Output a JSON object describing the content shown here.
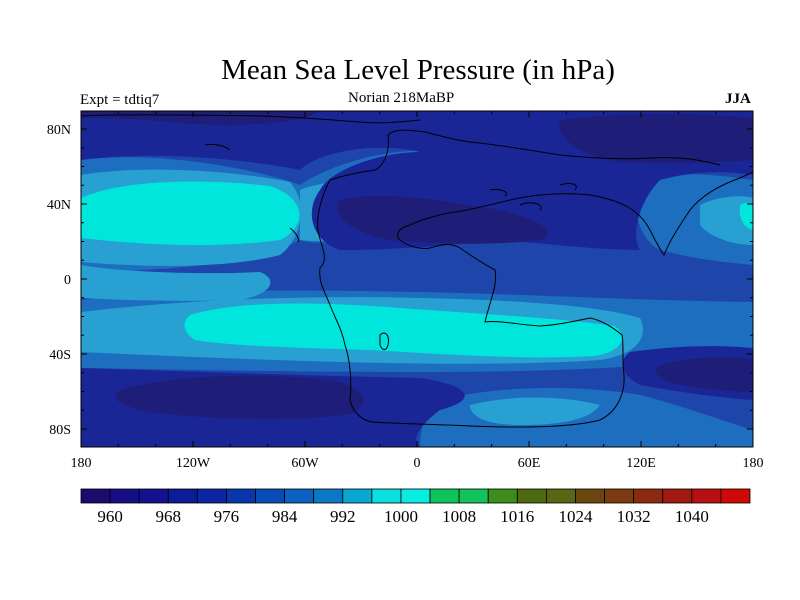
{
  "title": "Mean Sea Level Pressure (in hPa)",
  "experiment_label": "Expt = tdtiq7",
  "subtitle": "Norian   218MaBP",
  "season": "JJA",
  "map": {
    "lat_ticks": [
      "80N",
      "40N",
      "0",
      "40S",
      "80S"
    ],
    "lon_ticks": [
      "180",
      "120W",
      "60W",
      "0",
      "60E",
      "120E",
      "180"
    ]
  },
  "colorbar": {
    "colors": [
      "#1c0a6e",
      "#160e84",
      "#13128e",
      "#0a1c96",
      "#0b26a0",
      "#0a36ac",
      "#0a4cb7",
      "#0a62c1",
      "#0a78c4",
      "#08a7d4",
      "#0ae0de",
      "#08ece4",
      "#0ec45a",
      "#12c45a",
      "#3c8c1e",
      "#4c6a12",
      "#5a6412",
      "#6a4610",
      "#7c3a10",
      "#8c2a10",
      "#a01a10",
      "#b81010",
      "#d00808"
    ],
    "labels": [
      "960",
      "968",
      "976",
      "984",
      "992",
      "1000",
      "1008",
      "1016",
      "1024",
      "1032",
      "1040"
    ]
  },
  "palette": {
    "deep_navy": "#1e1e78",
    "navy": "#1a2696",
    "blue": "#1e46aa",
    "mid_blue": "#1e6ec0",
    "sky": "#28a0d2",
    "cyan": "#00e6dc",
    "coast": "#000000"
  }
}
